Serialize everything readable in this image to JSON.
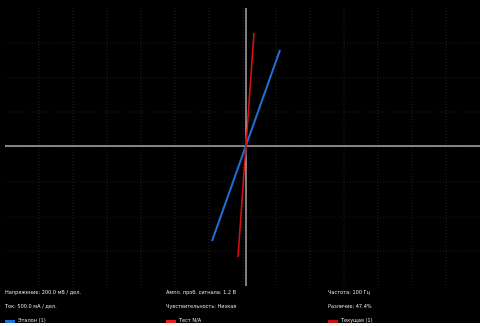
{
  "status": {
    "voltage_scale": "Напряжение: 200.0 мВ / дел.",
    "current_scale": "Ток: 500.0 мА / дел.",
    "probe_amplitude": "Ампл. проб. сигнала: 1.2 В",
    "sensitivity": "Чувствительность: Низкая",
    "frequency": "Частота: 100 Гц",
    "difference": "Различие: 47.4%"
  },
  "legend": [
    {
      "label": "Эталон (1)",
      "color": "#1e6fd8"
    },
    {
      "label": "Тест N/A",
      "color": "#e02020"
    },
    {
      "label": "Текущая (1)",
      "color": "#c01010"
    }
  ],
  "colors": {
    "background": "#000000",
    "grid": "#3a3a3a",
    "axes": "#d0d0d0",
    "reference_trace": "#1e6fd8",
    "current_trace": "#d81010"
  }
}
